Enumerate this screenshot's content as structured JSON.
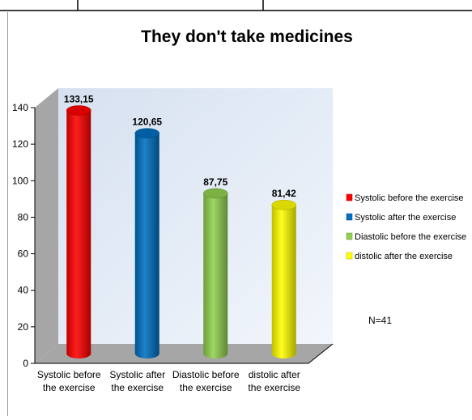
{
  "chart_data": {
    "type": "bar",
    "title": "They don't take medicines",
    "categories": [
      [
        "Systolic before",
        "the exercise"
      ],
      [
        "Systolic after",
        "the exercise"
      ],
      [
        "Diastolic before",
        "the exercise"
      ],
      [
        "distolic after",
        "the exercise"
      ]
    ],
    "values": [
      133.15,
      120.65,
      87.75,
      81.42
    ],
    "value_labels": [
      "133,15",
      "120,65",
      "87,75",
      "81,42"
    ],
    "colors": [
      "#ff0000",
      "#0070c0",
      "#92d050",
      "#ffff00"
    ],
    "legend": [
      "Systolic before the exercise",
      "Systolic after the exercise",
      "Diastolic before the exercise",
      "distolic after the exercise"
    ],
    "legend_position": "right",
    "ylim": [
      0,
      140
    ],
    "y_ticks": [
      0,
      20,
      40,
      60,
      80,
      100,
      120,
      140
    ],
    "annotation": "N=41"
  }
}
